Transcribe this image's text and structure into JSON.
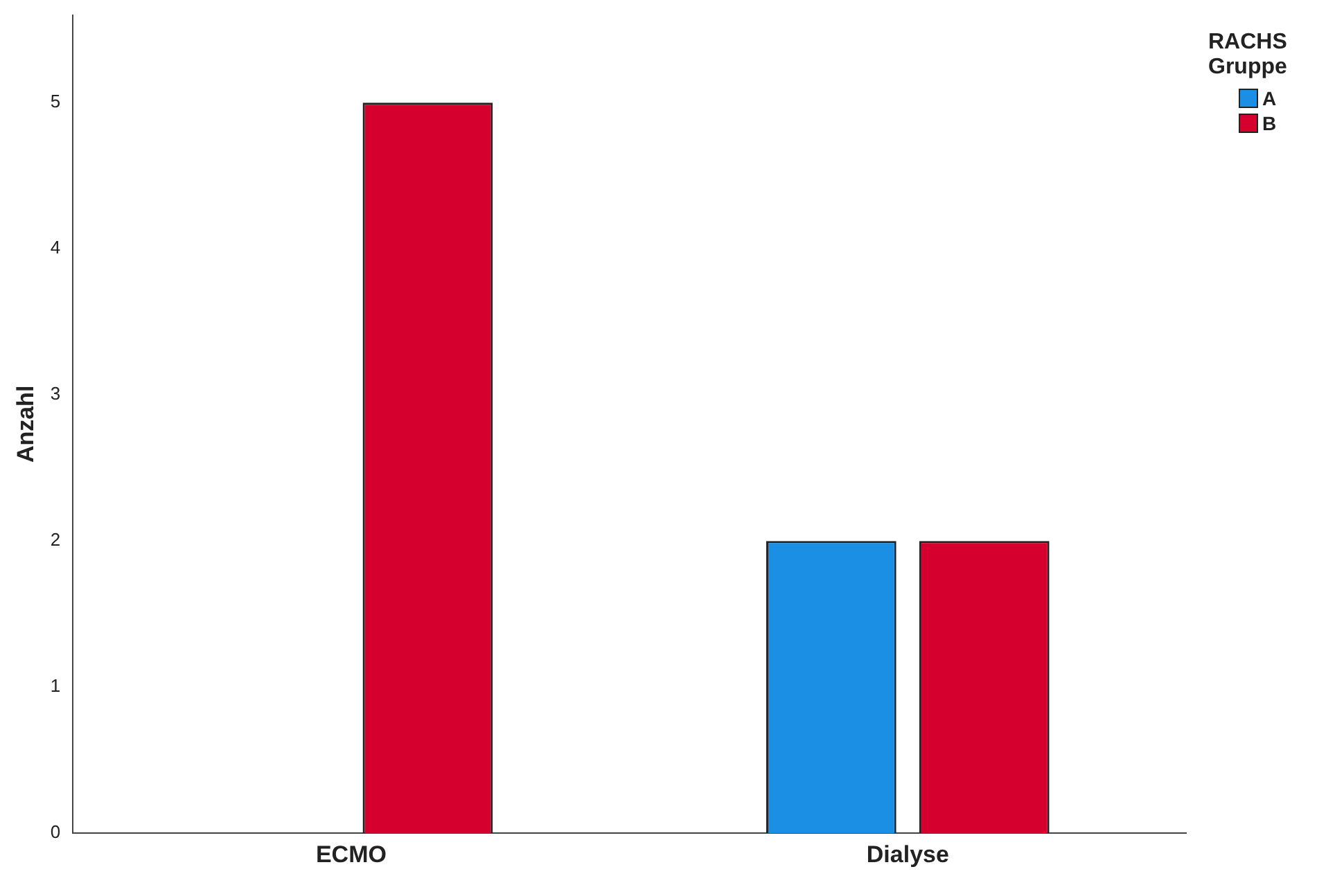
{
  "chart_data": {
    "type": "bar",
    "ylabel": "Anzahl",
    "legend_title": "RACHS Gruppe",
    "categories": [
      "ECMO",
      "Dialyse"
    ],
    "series": [
      {
        "name": "A",
        "color": "#1a8fe3",
        "values": [
          null,
          2
        ]
      },
      {
        "name": "B",
        "color": "#d5002d",
        "values": [
          5,
          2
        ]
      }
    ],
    "ylim": [
      0,
      5.6
    ],
    "yticks": [
      0,
      1,
      2,
      3,
      4,
      5
    ],
    "grid": false,
    "legend": "top right"
  }
}
